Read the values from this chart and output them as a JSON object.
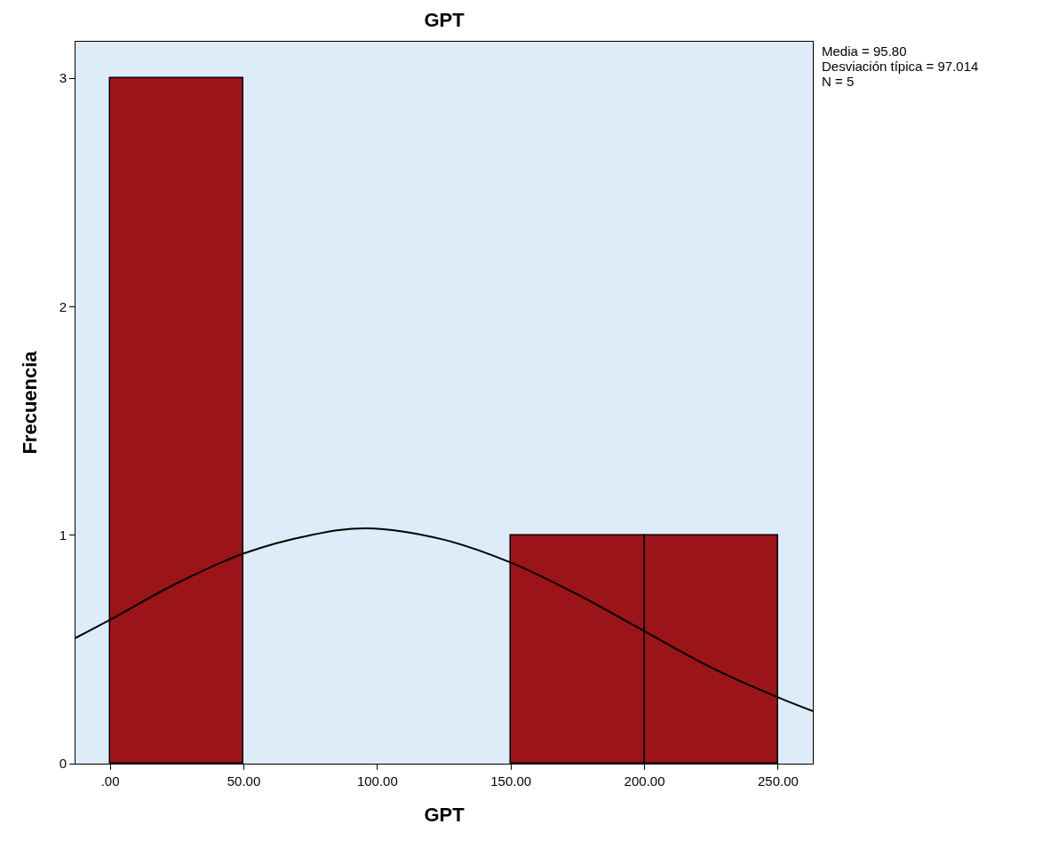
{
  "chart_data": {
    "type": "histogram",
    "title": "GPT",
    "xlabel": "GPT",
    "ylabel": "Frecuencia",
    "bins": [
      0,
      50,
      100,
      150,
      200,
      250
    ],
    "values": [
      3,
      0,
      0,
      1,
      1
    ],
    "color": "#9b1419",
    "series": [
      {
        "type": "line",
        "color": "#000000",
        "x": [
          -13,
          0,
          25,
          50,
          75,
          96,
          125,
          150,
          175,
          200,
          225,
          250,
          263
        ],
        "values": [
          0.55,
          0.63,
          0.79,
          0.92,
          1.0,
          1.03,
          0.98,
          0.88,
          0.74,
          0.58,
          0.42,
          0.29,
          0.23
        ]
      }
    ],
    "xlim": [
      -13,
      263
    ],
    "xticks": [
      {
        "value": 0,
        "label": ".00"
      },
      {
        "value": 50,
        "label": "50.00"
      },
      {
        "value": 100,
        "label": "100.00"
      },
      {
        "value": 150,
        "label": "150.00"
      },
      {
        "value": 200,
        "label": "200.00"
      },
      {
        "value": 250,
        "label": "250.00"
      }
    ],
    "ylim": [
      0,
      3.16
    ],
    "yticks": [
      0,
      1,
      2,
      3
    ],
    "grid": false,
    "line_style": "solid",
    "annotations": [
      "Media = 95.80",
      "Desviación típica = 97.014",
      "N = 5"
    ]
  }
}
